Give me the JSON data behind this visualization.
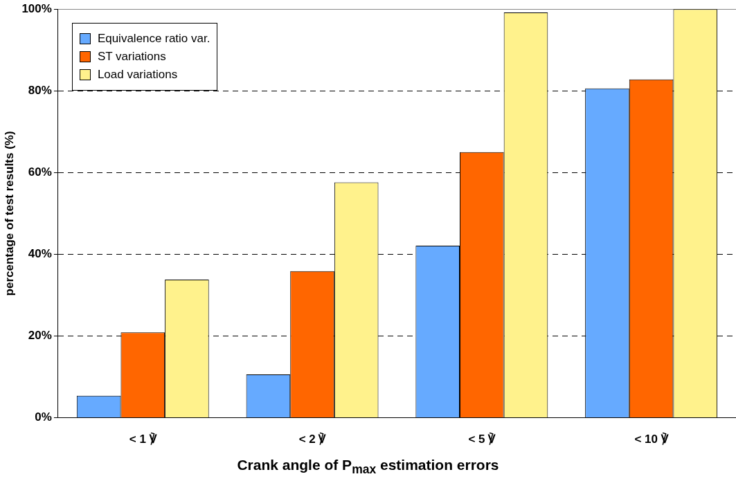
{
  "chart_data": {
    "type": "bar",
    "xlabel": "Crank angle of P$_{max}$ estimation errors",
    "ylabel": "percentage of test results (%)",
    "categories": [
      "< 1 ℣",
      "< 2 ℣",
      "< 5 ℣",
      "< 10 ℣"
    ],
    "series": [
      {
        "name": "Equivalence ratio var.",
        "color": "#66aaff",
        "values": [
          5.4,
          10.6,
          42.1,
          80.6
        ]
      },
      {
        "name": "ST variations",
        "color": "#ff6600",
        "values": [
          20.9,
          35.9,
          65.0,
          82.8
        ]
      },
      {
        "name": "Load variations",
        "color": "#fff28c",
        "values": [
          33.8,
          57.6,
          99.2,
          100
        ]
      }
    ],
    "ylim": [
      0,
      100
    ],
    "yticks": [
      {
        "value": 0,
        "label": "0%"
      },
      {
        "value": 20,
        "label": "20%"
      },
      {
        "value": 40,
        "label": "40%"
      },
      {
        "value": 60,
        "label": "60%"
      },
      {
        "value": 80,
        "label": "80%"
      },
      {
        "value": 100,
        "label": "100%"
      }
    ],
    "grid": "y",
    "legend": "top left"
  }
}
